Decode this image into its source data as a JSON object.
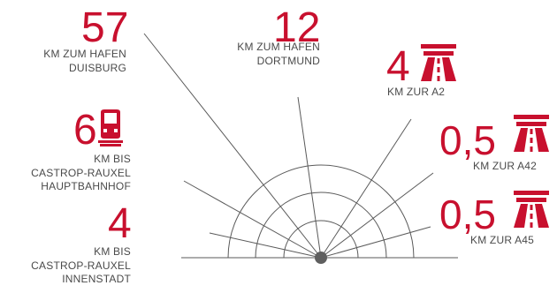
{
  "colors": {
    "accent": "#c8102e",
    "text": "#4a4a4a",
    "lines": "#5a5a5a",
    "hub": "#5f5f5f"
  },
  "items": [
    {
      "id": "duisburg",
      "value": "57",
      "label": [
        "KM ZUM HAFEN",
        "DUISBURG"
      ]
    },
    {
      "id": "dortmund",
      "value": "12",
      "label": [
        "KM ZUM HAFEN",
        "DORTMUND"
      ]
    },
    {
      "id": "a2",
      "value": "4",
      "icon": "motorway-icon",
      "label": [
        "KM ZUR A2"
      ]
    },
    {
      "id": "a42",
      "value": "0,5",
      "icon": "motorway-icon",
      "label": [
        "KM ZUR A42"
      ]
    },
    {
      "id": "a45",
      "value": "0,5",
      "icon": "motorway-icon",
      "label": [
        "KM ZUR A45"
      ]
    },
    {
      "id": "hbf",
      "value": "6",
      "icon": "train-icon",
      "label": [
        "KM BIS",
        "CASTROP-RAUXEL",
        "HAUPTBAHNHOF"
      ]
    },
    {
      "id": "innenstadt",
      "value": "4",
      "label": [
        "KM BIS",
        "CASTROP-RAUXEL",
        "INNENSTADT"
      ]
    }
  ]
}
